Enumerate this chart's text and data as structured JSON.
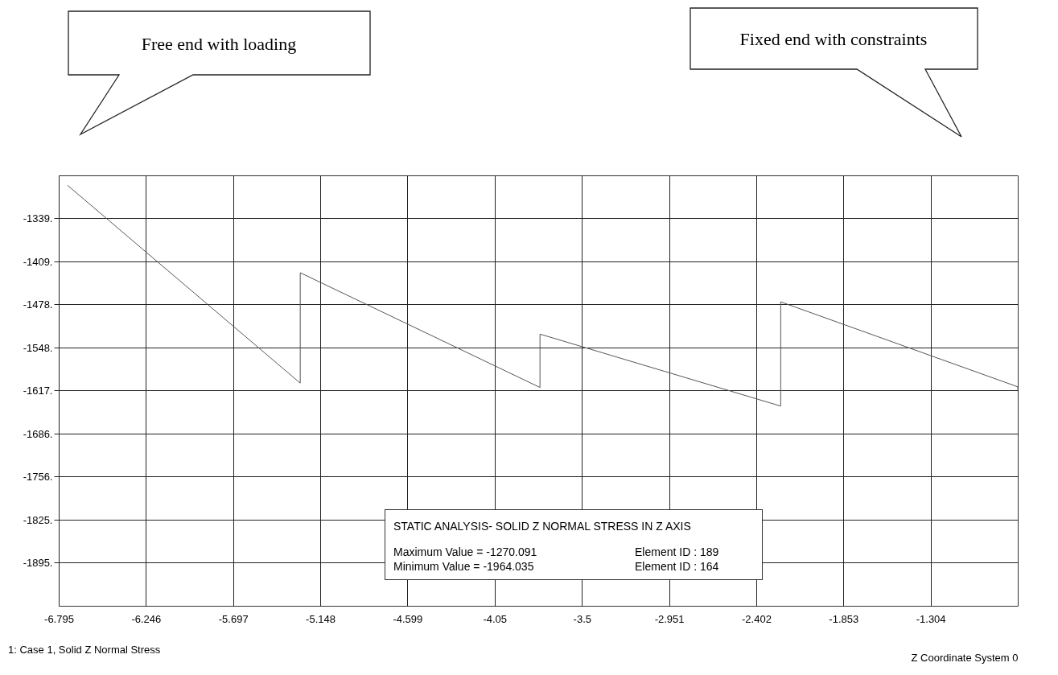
{
  "chart_data": {
    "type": "line",
    "title": "STATIC ANALYSIS- SOLID Z NORMAL STRESS IN Z AXIS",
    "xlabel": "Z Coordinate System 0",
    "annotations": [
      "Free end with loading",
      "Fixed end with constraints",
      "Maximum Value = -1270.091",
      "Element ID : 189",
      "Minimum Value  = -1964.035",
      "Element ID : 164",
      "1: Case 1, Solid Z Normal Stress"
    ],
    "series": [
      {
        "color": "#555555",
        "x": [
          -6.74,
          -5.274,
          -5.274,
          -3.764,
          -3.764,
          -2.248,
          -2.248,
          -0.755,
          -0.755
        ],
        "values": [
          -1286,
          -1605,
          -1427,
          -1612,
          -1526,
          -1642,
          -1474,
          -1611,
          -1616
        ]
      }
    ],
    "xlim": [
      -6.795,
      -0.755
    ],
    "xticks": [
      -6.795,
      -6.246,
      -5.697,
      -5.148,
      -4.599,
      -4.05,
      -3.5,
      -2.951,
      -2.402,
      -1.853,
      -1.304
    ],
    "ylim": [
      -1964.035,
      -1270.091
    ],
    "yticks": [
      {
        "value": -1339.485,
        "label": "-1339."
      },
      {
        "value": -1408.88,
        "label": "-1409."
      },
      {
        "value": -1478.27,
        "label": "-1478."
      },
      {
        "value": -1547.67,
        "label": "-1548."
      },
      {
        "value": -1617.06,
        "label": "-1617."
      },
      {
        "value": -1686.46,
        "label": "-1686."
      },
      {
        "value": -1755.85,
        "label": "-1756."
      },
      {
        "value": -1825.25,
        "label": "-1825."
      },
      {
        "value": -1894.64,
        "label": "-1895."
      }
    ],
    "grid": true,
    "marker": "none",
    "line_style": "solid"
  }
}
